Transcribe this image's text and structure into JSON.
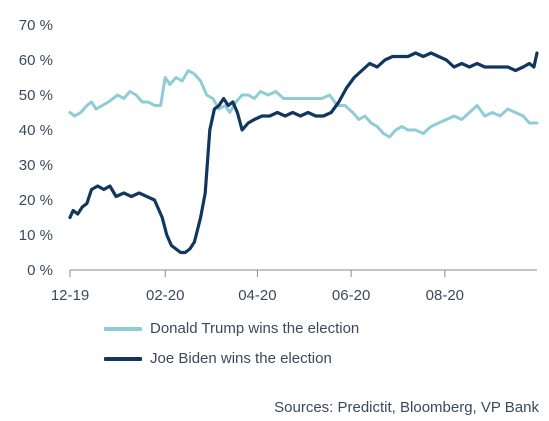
{
  "chart_data": {
    "type": "line",
    "title": "",
    "xlabel": "",
    "ylabel": "",
    "x_range": [
      "2019-12-01",
      "2020-09-30"
    ],
    "x_ticks": [
      {
        "date": "2019-12-01",
        "label": "12-19"
      },
      {
        "date": "2020-02-01",
        "label": "02-20"
      },
      {
        "date": "2020-04-01",
        "label": "04-20"
      },
      {
        "date": "2020-06-01",
        "label": "06-20"
      },
      {
        "date": "2020-08-01",
        "label": "08-20"
      }
    ],
    "y_range": [
      0,
      70
    ],
    "y_ticks": [
      {
        "value": 0,
        "label": "0 %"
      },
      {
        "value": 10,
        "label": "10 %"
      },
      {
        "value": 20,
        "label": "20 %"
      },
      {
        "value": 30,
        "label": "30 %"
      },
      {
        "value": 40,
        "label": "40 %"
      },
      {
        "value": 50,
        "label": "50 %"
      },
      {
        "value": 60,
        "label": "60 %"
      },
      {
        "value": 70,
        "label": "70 %"
      }
    ],
    "grid": false,
    "legend_position": "bottom-left",
    "series": [
      {
        "name": "Donald Trump wins the election",
        "color": "#8fcdd6",
        "points": [
          [
            "2019-12-01",
            45
          ],
          [
            "2019-12-04",
            44
          ],
          [
            "2019-12-08",
            45
          ],
          [
            "2019-12-12",
            47
          ],
          [
            "2019-12-15",
            48
          ],
          [
            "2019-12-18",
            46
          ],
          [
            "2019-12-22",
            47
          ],
          [
            "2019-12-26",
            48
          ],
          [
            "2020-01-01",
            50
          ],
          [
            "2020-01-05",
            49
          ],
          [
            "2020-01-09",
            51
          ],
          [
            "2020-01-13",
            50
          ],
          [
            "2020-01-17",
            48
          ],
          [
            "2020-01-21",
            48
          ],
          [
            "2020-01-25",
            47
          ],
          [
            "2020-01-29",
            47
          ],
          [
            "2020-02-01",
            55
          ],
          [
            "2020-02-04",
            53
          ],
          [
            "2020-02-08",
            55
          ],
          [
            "2020-02-12",
            54
          ],
          [
            "2020-02-16",
            57
          ],
          [
            "2020-02-20",
            56
          ],
          [
            "2020-02-24",
            54
          ],
          [
            "2020-02-28",
            50
          ],
          [
            "2020-03-03",
            49
          ],
          [
            "2020-03-07",
            46
          ],
          [
            "2020-03-11",
            47
          ],
          [
            "2020-03-14",
            45
          ],
          [
            "2020-03-18",
            48
          ],
          [
            "2020-03-22",
            50
          ],
          [
            "2020-03-26",
            50
          ],
          [
            "2020-03-30",
            49
          ],
          [
            "2020-04-03",
            51
          ],
          [
            "2020-04-08",
            50
          ],
          [
            "2020-04-13",
            51
          ],
          [
            "2020-04-18",
            49
          ],
          [
            "2020-04-23",
            49
          ],
          [
            "2020-04-28",
            49
          ],
          [
            "2020-05-03",
            49
          ],
          [
            "2020-05-08",
            49
          ],
          [
            "2020-05-13",
            49
          ],
          [
            "2020-05-18",
            50
          ],
          [
            "2020-05-23",
            47
          ],
          [
            "2020-05-28",
            47
          ],
          [
            "2020-06-02",
            45
          ],
          [
            "2020-06-06",
            43
          ],
          [
            "2020-06-10",
            44
          ],
          [
            "2020-06-14",
            42
          ],
          [
            "2020-06-18",
            41
          ],
          [
            "2020-06-22",
            39
          ],
          [
            "2020-06-26",
            38
          ],
          [
            "2020-06-30",
            40
          ],
          [
            "2020-07-04",
            41
          ],
          [
            "2020-07-08",
            40
          ],
          [
            "2020-07-13",
            40
          ],
          [
            "2020-07-18",
            39
          ],
          [
            "2020-07-23",
            41
          ],
          [
            "2020-07-28",
            42
          ],
          [
            "2020-08-02",
            43
          ],
          [
            "2020-08-07",
            44
          ],
          [
            "2020-08-12",
            43
          ],
          [
            "2020-08-17",
            45
          ],
          [
            "2020-08-22",
            47
          ],
          [
            "2020-08-27",
            44
          ],
          [
            "2020-09-01",
            45
          ],
          [
            "2020-09-06",
            44
          ],
          [
            "2020-09-11",
            46
          ],
          [
            "2020-09-16",
            45
          ],
          [
            "2020-09-21",
            44
          ],
          [
            "2020-09-25",
            42
          ],
          [
            "2020-09-30",
            42
          ]
        ]
      },
      {
        "name": "Joe Biden wins the election",
        "color": "#12375f",
        "points": [
          [
            "2019-12-01",
            15
          ],
          [
            "2019-12-03",
            17
          ],
          [
            "2019-12-06",
            16
          ],
          [
            "2019-12-09",
            18
          ],
          [
            "2019-12-12",
            19
          ],
          [
            "2019-12-15",
            23
          ],
          [
            "2019-12-19",
            24
          ],
          [
            "2019-12-23",
            23
          ],
          [
            "2019-12-27",
            24
          ],
          [
            "2019-12-31",
            21
          ],
          [
            "2020-01-05",
            22
          ],
          [
            "2020-01-10",
            21
          ],
          [
            "2020-01-15",
            22
          ],
          [
            "2020-01-20",
            21
          ],
          [
            "2020-01-25",
            20
          ],
          [
            "2020-01-30",
            15
          ],
          [
            "2020-02-02",
            10
          ],
          [
            "2020-02-05",
            7
          ],
          [
            "2020-02-08",
            6
          ],
          [
            "2020-02-11",
            5
          ],
          [
            "2020-02-14",
            5
          ],
          [
            "2020-02-17",
            6
          ],
          [
            "2020-02-20",
            8
          ],
          [
            "2020-02-24",
            15
          ],
          [
            "2020-02-27",
            22
          ],
          [
            "2020-03-01",
            40
          ],
          [
            "2020-03-04",
            46
          ],
          [
            "2020-03-07",
            47
          ],
          [
            "2020-03-10",
            49
          ],
          [
            "2020-03-13",
            47
          ],
          [
            "2020-03-16",
            48
          ],
          [
            "2020-03-19",
            45
          ],
          [
            "2020-03-22",
            40
          ],
          [
            "2020-03-26",
            42
          ],
          [
            "2020-03-30",
            43
          ],
          [
            "2020-04-04",
            44
          ],
          [
            "2020-04-09",
            44
          ],
          [
            "2020-04-14",
            45
          ],
          [
            "2020-04-19",
            44
          ],
          [
            "2020-04-24",
            45
          ],
          [
            "2020-04-29",
            44
          ],
          [
            "2020-05-04",
            45
          ],
          [
            "2020-05-09",
            44
          ],
          [
            "2020-05-14",
            44
          ],
          [
            "2020-05-19",
            45
          ],
          [
            "2020-05-24",
            48
          ],
          [
            "2020-05-29",
            52
          ],
          [
            "2020-06-03",
            55
          ],
          [
            "2020-06-08",
            57
          ],
          [
            "2020-06-13",
            59
          ],
          [
            "2020-06-18",
            58
          ],
          [
            "2020-06-23",
            60
          ],
          [
            "2020-06-28",
            61
          ],
          [
            "2020-07-03",
            61
          ],
          [
            "2020-07-08",
            61
          ],
          [
            "2020-07-13",
            62
          ],
          [
            "2020-07-18",
            61
          ],
          [
            "2020-07-23",
            62
          ],
          [
            "2020-07-28",
            61
          ],
          [
            "2020-08-02",
            60
          ],
          [
            "2020-08-07",
            58
          ],
          [
            "2020-08-12",
            59
          ],
          [
            "2020-08-17",
            58
          ],
          [
            "2020-08-22",
            59
          ],
          [
            "2020-08-27",
            58
          ],
          [
            "2020-09-01",
            58
          ],
          [
            "2020-09-06",
            58
          ],
          [
            "2020-09-11",
            58
          ],
          [
            "2020-09-16",
            57
          ],
          [
            "2020-09-21",
            58
          ],
          [
            "2020-09-25",
            59
          ],
          [
            "2020-09-28",
            58
          ],
          [
            "2020-09-30",
            62
          ]
        ]
      }
    ]
  },
  "source": "Sources: Predictit, Bloomberg, VP Bank"
}
